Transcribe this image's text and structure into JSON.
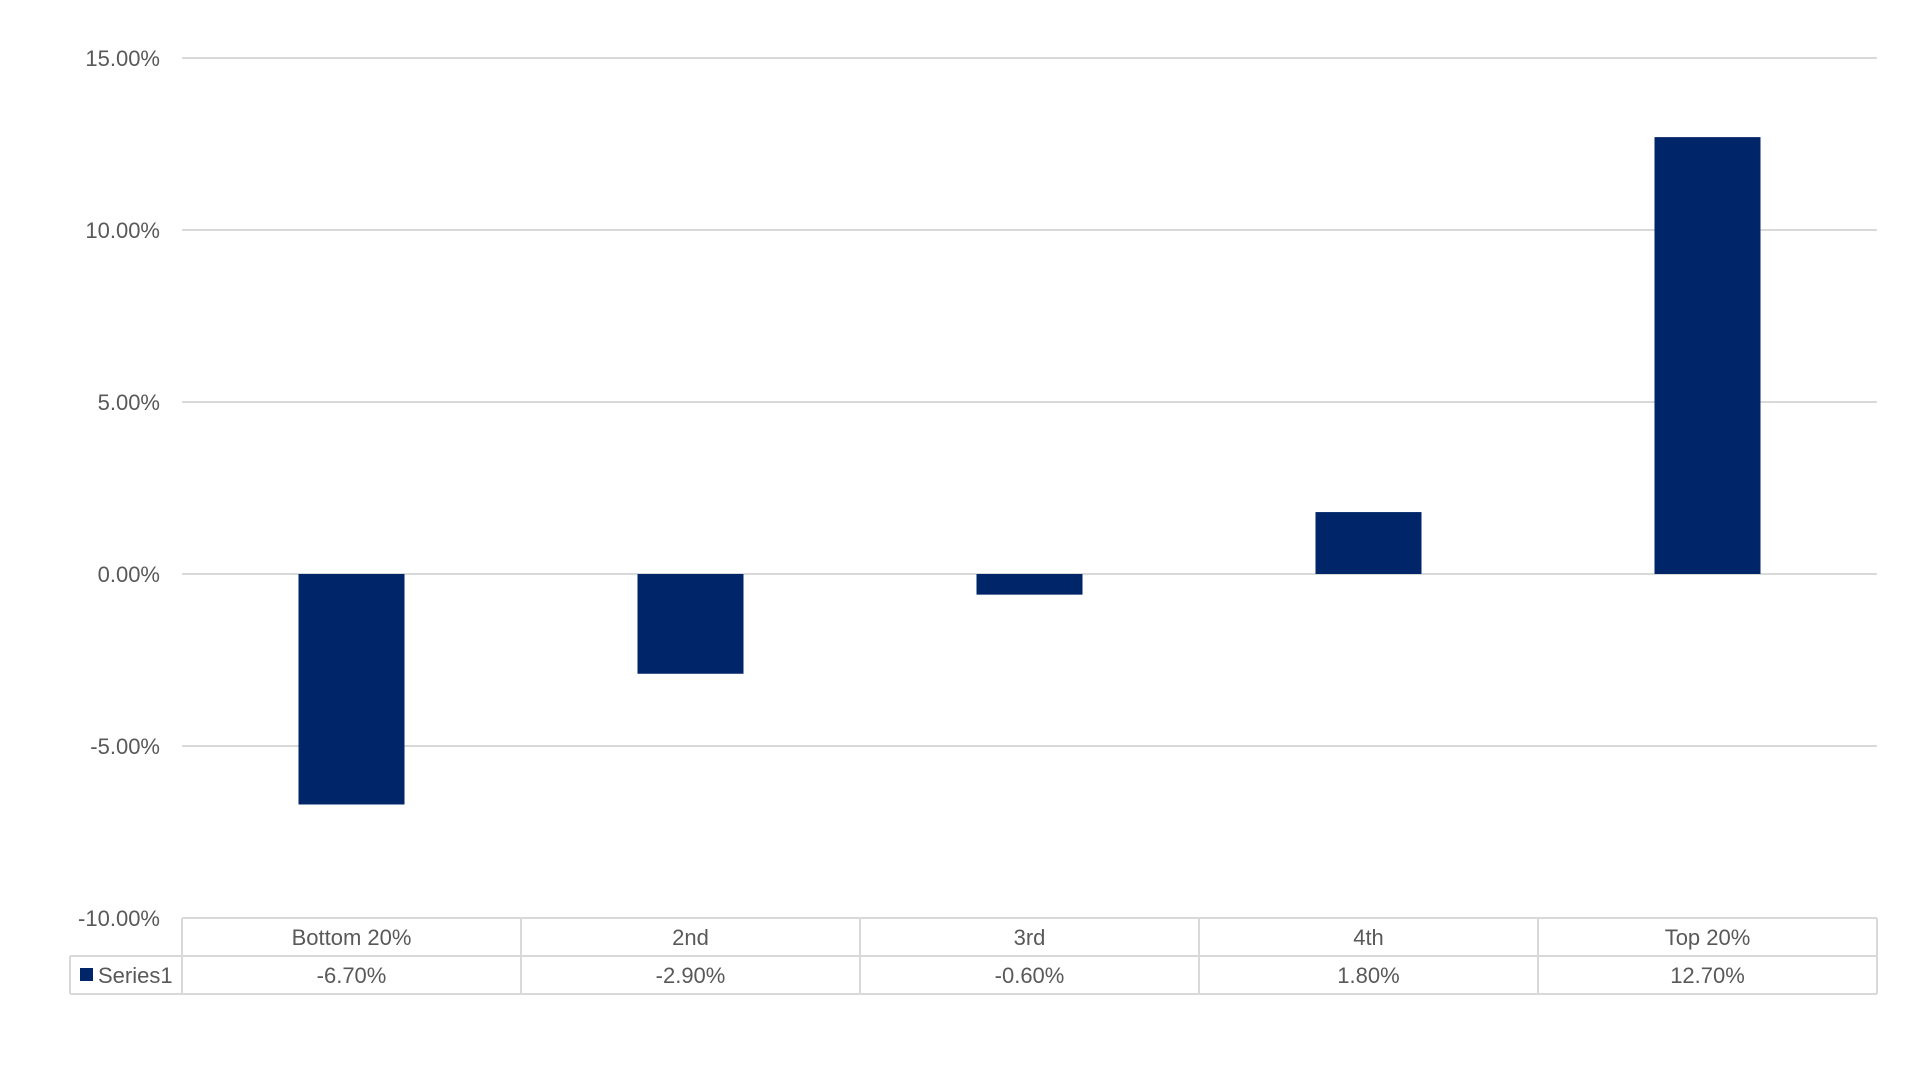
{
  "chart_data": {
    "type": "bar",
    "categories": [
      "Bottom 20%",
      "2nd",
      "3rd",
      "4th",
      "Top 20%"
    ],
    "series": [
      {
        "name": "Series1",
        "values": [
          -6.7,
          -2.9,
          -0.6,
          1.8,
          12.7
        ],
        "color": "#002569"
      }
    ],
    "value_labels": [
      "-6.70%",
      "-2.90%",
      "-0.60%",
      "1.80%",
      "12.70%"
    ],
    "ylim": [
      -10,
      15
    ],
    "yticks": [
      15,
      10,
      5,
      0,
      -5,
      -10
    ],
    "ytick_labels": [
      "15.00%",
      "10.00%",
      "5.00%",
      "0.00%",
      "-5.00%",
      "-10.00%"
    ],
    "grid": true,
    "legend": "data-table",
    "colors": {
      "bar": "#002569",
      "grid": "#d9d9d9",
      "text": "#595959"
    }
  }
}
